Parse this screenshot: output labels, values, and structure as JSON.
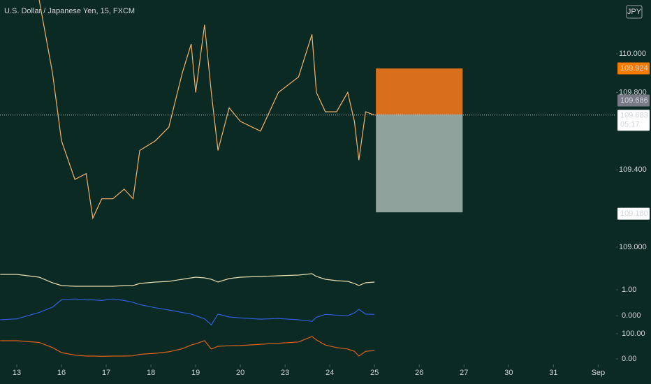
{
  "chart_data": {
    "type": "line",
    "title": "U.S. Dollar / Japanese Yen, 15, FXCM",
    "currency": "JPY",
    "x": [
      -0.37,
      0,
      0.5,
      0.8,
      1.0,
      1.3,
      1.55,
      1.7,
      1.9,
      2.15,
      2.4,
      2.6,
      2.75,
      3.1,
      3.4,
      3.7,
      3.9,
      4.0,
      4.2,
      4.35,
      4.5,
      4.75,
      5.0,
      5.45,
      5.85,
      6.3,
      6.6,
      6.7,
      6.9,
      7.15,
      7.4,
      7.55,
      7.65,
      7.8,
      8.0
    ],
    "xlim": [
      -0.375,
      13.4
    ],
    "xticks": [
      {
        "value": 0,
        "label": "13"
      },
      {
        "value": 1,
        "label": "16"
      },
      {
        "value": 2,
        "label": "17"
      },
      {
        "value": 3,
        "label": "18"
      },
      {
        "value": 4,
        "label": "19"
      },
      {
        "value": 5,
        "label": "20"
      },
      {
        "value": 6,
        "label": "23"
      },
      {
        "value": 7,
        "label": "24"
      },
      {
        "value": 8,
        "label": "25"
      },
      {
        "value": 9,
        "label": "26"
      },
      {
        "value": 10,
        "label": "27"
      },
      {
        "value": 11,
        "label": "30"
      },
      {
        "value": 12,
        "label": "31"
      },
      {
        "value": 13,
        "label": "Sep"
      }
    ],
    "ylim": [
      108.906,
      110.278
    ],
    "yticks": [
      {
        "value": 110,
        "label": "110.000"
      },
      {
        "value": 109.8,
        "label": "109.800"
      },
      {
        "value": 109.4,
        "label": "109.400"
      },
      {
        "value": 109,
        "label": "109.000"
      }
    ],
    "series": [
      {
        "color": "#f5b26b",
        "values": [
          null,
          null,
          110.28,
          109.9,
          109.55,
          109.35,
          109.38,
          109.15,
          109.25,
          109.25,
          109.3,
          109.25,
          109.5,
          109.55,
          109.62,
          109.9,
          110.05,
          109.8,
          110.15,
          109.8,
          109.5,
          109.72,
          109.65,
          109.6,
          109.8,
          109.88,
          110.1,
          109.8,
          109.7,
          109.7,
          109.8,
          109.65,
          109.45,
          109.7,
          109.683
        ]
      }
    ],
    "position": {
      "start": 8.03,
      "end": 9.97,
      "target": {
        "value": 109.924,
        "label": "109.924"
      },
      "entry": {
        "value": 109.686,
        "label": "109.686"
      },
      "stop": {
        "value": 109.18,
        "label": "109.180"
      },
      "target_color": "#d96f1c",
      "stop_color": "#8fa39c"
    },
    "last_price": {
      "value": 109.683,
      "label": "109.683",
      "countdown": "05:17"
    },
    "panes": [
      {
        "ylim": [
          0.8,
          1.6
        ],
        "yticks": [
          {
            "value": 1,
            "label": "1.00"
          }
        ],
        "series": [
          {
            "color": "#e6dcb0",
            "values": [
              1.44,
              1.44,
              1.36,
              1.2,
              1.12,
              1.1,
              1.1,
              1.1,
              1.1,
              1.1,
              1.12,
              1.12,
              1.18,
              1.22,
              1.24,
              1.3,
              1.34,
              1.36,
              1.34,
              1.3,
              1.22,
              1.32,
              1.36,
              1.38,
              1.4,
              1.42,
              1.46,
              1.38,
              1.3,
              1.26,
              1.24,
              1.18,
              1.12,
              1.2,
              1.22
            ]
          }
        ]
      },
      {
        "ylim": [
          -0.35,
          0.6
        ],
        "yticks": [
          {
            "value": 0,
            "label": "0.000"
          }
        ],
        "series": [
          {
            "color": "#2f5fe0",
            "values": [
              -0.13,
              -0.1,
              0.1,
              0.27,
              0.5,
              0.53,
              0.5,
              0.5,
              0.48,
              0.53,
              0.48,
              0.42,
              0.35,
              0.25,
              0.18,
              0.1,
              0.05,
              0.0,
              -0.1,
              -0.29,
              0.05,
              -0.04,
              -0.07,
              -0.11,
              -0.09,
              -0.13,
              -0.18,
              -0.05,
              0.04,
              0.02,
              0.0,
              0.09,
              0.2,
              0.05,
              0.04
            ]
          }
        ]
      },
      {
        "ylim": [
          -16.7,
          122
        ],
        "yticks": [
          {
            "value": 100,
            "label": "100.00"
          },
          {
            "value": 0,
            "label": "0.00"
          }
        ],
        "series": [
          {
            "color": "#d9621b",
            "values": [
              72,
              72,
              65,
              45,
              25,
              15,
              11,
              11,
              10,
              11,
              11,
              12,
              18,
              22,
              28,
              40,
              55,
              60,
              72,
              39,
              50,
              52,
              53,
              58,
              62,
              67,
              89,
              75,
              55,
              45,
              39,
              30,
              11,
              30,
              33
            ]
          }
        ]
      }
    ]
  }
}
